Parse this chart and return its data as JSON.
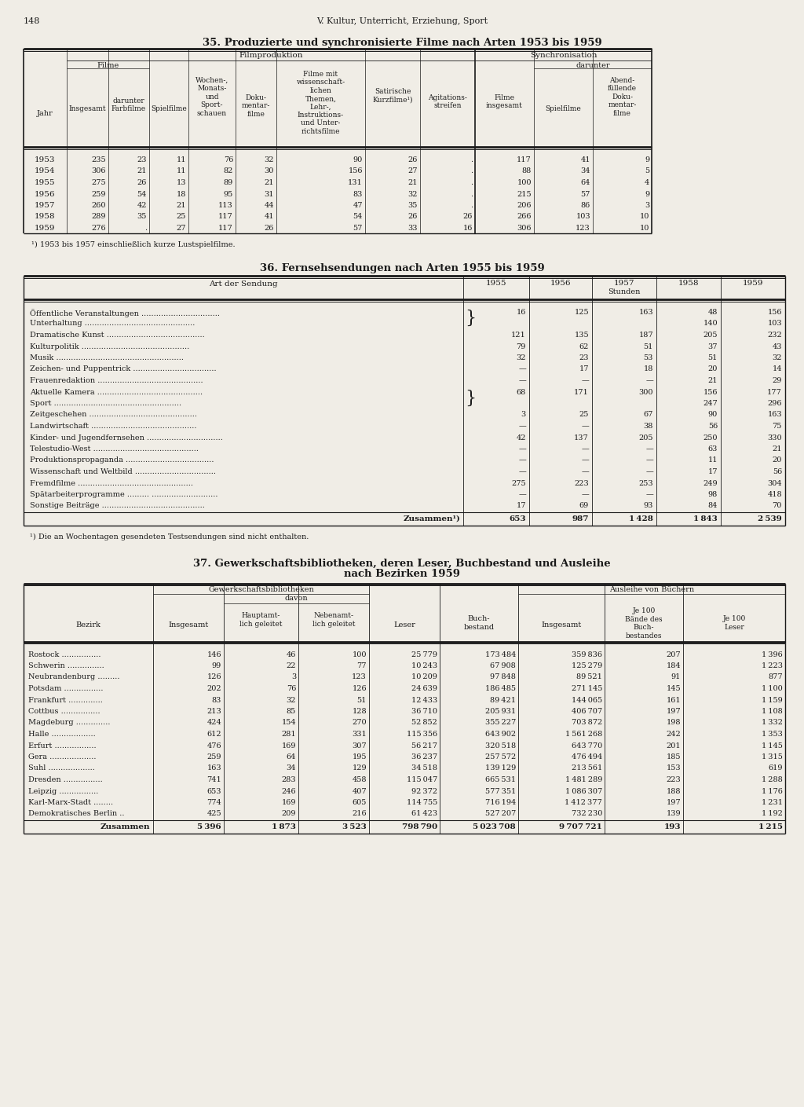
{
  "page_number": "148",
  "page_header": "V. Kultur, Unterricht, Erziehung, Sport",
  "bg_color": "#f0ede6",
  "table1": {
    "title": "35. Produzierte und synchronisierte Filme nach Arten 1953 bis 1959",
    "data": [
      [
        "1953",
        "235",
        "23",
        "11",
        "76",
        "32",
        "90",
        "26",
        ".",
        "117",
        "41",
        "9"
      ],
      [
        "1954",
        "306",
        "21",
        "11",
        "82",
        "30",
        "156",
        "27",
        ".",
        "88",
        "34",
        "5"
      ],
      [
        "1955",
        "275",
        "26",
        "13",
        "89",
        "21",
        "131",
        "21",
        ".",
        "100",
        "64",
        "4"
      ],
      [
        "1956",
        "259",
        "54",
        "18",
        "95",
        "31",
        "83",
        "32",
        ".",
        "215",
        "57",
        "9"
      ],
      [
        "1957",
        "260",
        "42",
        "21",
        "113",
        "44",
        "47",
        "35",
        ".",
        "206",
        "86",
        "3"
      ],
      [
        "1958",
        "289",
        "35",
        "25",
        "117",
        "41",
        "54",
        "26",
        "26",
        "266",
        "103",
        "10"
      ],
      [
        "1959",
        "276",
        ".",
        "27",
        "117",
        "26",
        "57",
        "33",
        "16",
        "306",
        "123",
        "10"
      ]
    ],
    "footnote": "¹) 1953 bis 1957 einschließlich kurze Lustspielfilme."
  },
  "table2": {
    "title": "36. Fernsehsendungen nach Arten 1955 bis 1959",
    "rows": [
      [
        "Öffentliche Veranstaltungen ................................",
        "16",
        "125",
        "163",
        "48",
        "156"
      ],
      [
        "Unterhaltung .............................................",
        "",
        "",
        "",
        "140",
        "103"
      ],
      [
        "Dramatische Kunst ........................................",
        "121",
        "135",
        "187",
        "205",
        "232"
      ],
      [
        "Kulturpolitik ............................................",
        "79",
        "62",
        "51",
        "37",
        "43"
      ],
      [
        "Musik ....................................................",
        "32",
        "23",
        "53",
        "51",
        "32"
      ],
      [
        "Zeichen- und Puppentrick ..................................",
        "—",
        "17",
        "18",
        "20",
        "14"
      ],
      [
        "Frauenredaktion ...........................................",
        "—",
        "—",
        "—",
        "21",
        "29"
      ],
      [
        "Aktuelle Kamera ...........................................",
        "68",
        "171",
        "300",
        "156",
        "177"
      ],
      [
        "Sport ....................................................",
        "",
        "",
        "",
        "247",
        "296"
      ],
      [
        "Zeitgeschehen ............................................",
        "3",
        "25",
        "67",
        "90",
        "163"
      ],
      [
        "Landwirtschaft ...........................................",
        "—",
        "—",
        "38",
        "56",
        "75"
      ],
      [
        "Kinder- und Jugendfernsehen ...............................",
        "42",
        "137",
        "205",
        "250",
        "330"
      ],
      [
        "Telestudio-West ...........................................",
        "—",
        "—",
        "—",
        "63",
        "21"
      ],
      [
        "Produktionspropaganda ....................................",
        "—",
        "—",
        "—",
        "11",
        "20"
      ],
      [
        "Wissenschaft und Weltbild .................................",
        "—",
        "—",
        "—",
        "17",
        "56"
      ],
      [
        "Fremdfilme ...............................................",
        "275",
        "223",
        "253",
        "249",
        "304"
      ],
      [
        "Spätarbeiterprogramme ......... ...........................",
        "—",
        "—",
        "—",
        "98",
        "418"
      ],
      [
        "Sonstige Beiträge ..........................................",
        "17",
        "69",
        "93",
        "84",
        "70"
      ]
    ],
    "bracket_rows": [
      0,
      7
    ],
    "total": [
      "Zusammen¹)",
      "653",
      "987",
      "1 428",
      "1 843",
      "2 539"
    ],
    "footnote": "¹) Die an Wochentagen gesendeten Testsendungen sind nicht enthalten."
  },
  "table3": {
    "title1": "37. Gewerkschaftsbibliotheken, deren Leser, Buchbestand und Ausleihe",
    "title2": "nach Bezirken 1959",
    "rows": [
      [
        "Rostock ................",
        "146",
        "46",
        "100",
        "25 779",
        "173 484",
        "359 836",
        "207",
        "1 396"
      ],
      [
        "Schwerin ...............",
        "99",
        "22",
        "77",
        "10 243",
        "67 908",
        "125 279",
        "184",
        "1 223"
      ],
      [
        "Neubrandenburg .........",
        "126",
        "3",
        "123",
        "10 209",
        "97 848",
        "89 521",
        "91",
        "877"
      ],
      [
        "Potsdam ................",
        "202",
        "76",
        "126",
        "24 639",
        "186 485",
        "271 145",
        "145",
        "1 100"
      ],
      [
        "Frankfurt ..............",
        "83",
        "32",
        "51",
        "12 433",
        "89 421",
        "144 065",
        "161",
        "1 159"
      ],
      [
        "Cottbus ................",
        "213",
        "85",
        "128",
        "36 710",
        "205 931",
        "406 707",
        "197",
        "1 108"
      ],
      [
        "Magdeburg ..............",
        "424",
        "154",
        "270",
        "52 852",
        "355 227",
        "703 872",
        "198",
        "1 332"
      ],
      [
        "Halle ..................",
        "612",
        "281",
        "331",
        "115 356",
        "643 902",
        "1 561 268",
        "242",
        "1 353"
      ],
      [
        "Erfurt .................",
        "476",
        "169",
        "307",
        "56 217",
        "320 518",
        "643 770",
        "201",
        "1 145"
      ],
      [
        "Gera ...................",
        "259",
        "64",
        "195",
        "36 237",
        "257 572",
        "476 494",
        "185",
        "1 315"
      ],
      [
        "Suhl ...................",
        "163",
        "34",
        "129",
        "34 518",
        "139 129",
        "213 561",
        "153",
        "619"
      ],
      [
        "Dresden ................",
        "741",
        "283",
        "458",
        "115 047",
        "665 531",
        "1 481 289",
        "223",
        "1 288"
      ],
      [
        "Leipzig ................",
        "653",
        "246",
        "407",
        "92 372",
        "577 351",
        "1 086 307",
        "188",
        "1 176"
      ],
      [
        "Karl-Marx-Stadt ........",
        "774",
        "169",
        "605",
        "114 755",
        "716 194",
        "1 412 377",
        "197",
        "1 231"
      ],
      [
        "Demokratisches Berlin ..",
        "425",
        "209",
        "216",
        "61 423",
        "527 207",
        "732 230",
        "139",
        "1 192"
      ]
    ],
    "total": [
      "Zusammen",
      "5 396",
      "1 873",
      "3 523",
      "798 790",
      "5 023 708",
      "9 707 721",
      "193",
      "1 215"
    ]
  }
}
